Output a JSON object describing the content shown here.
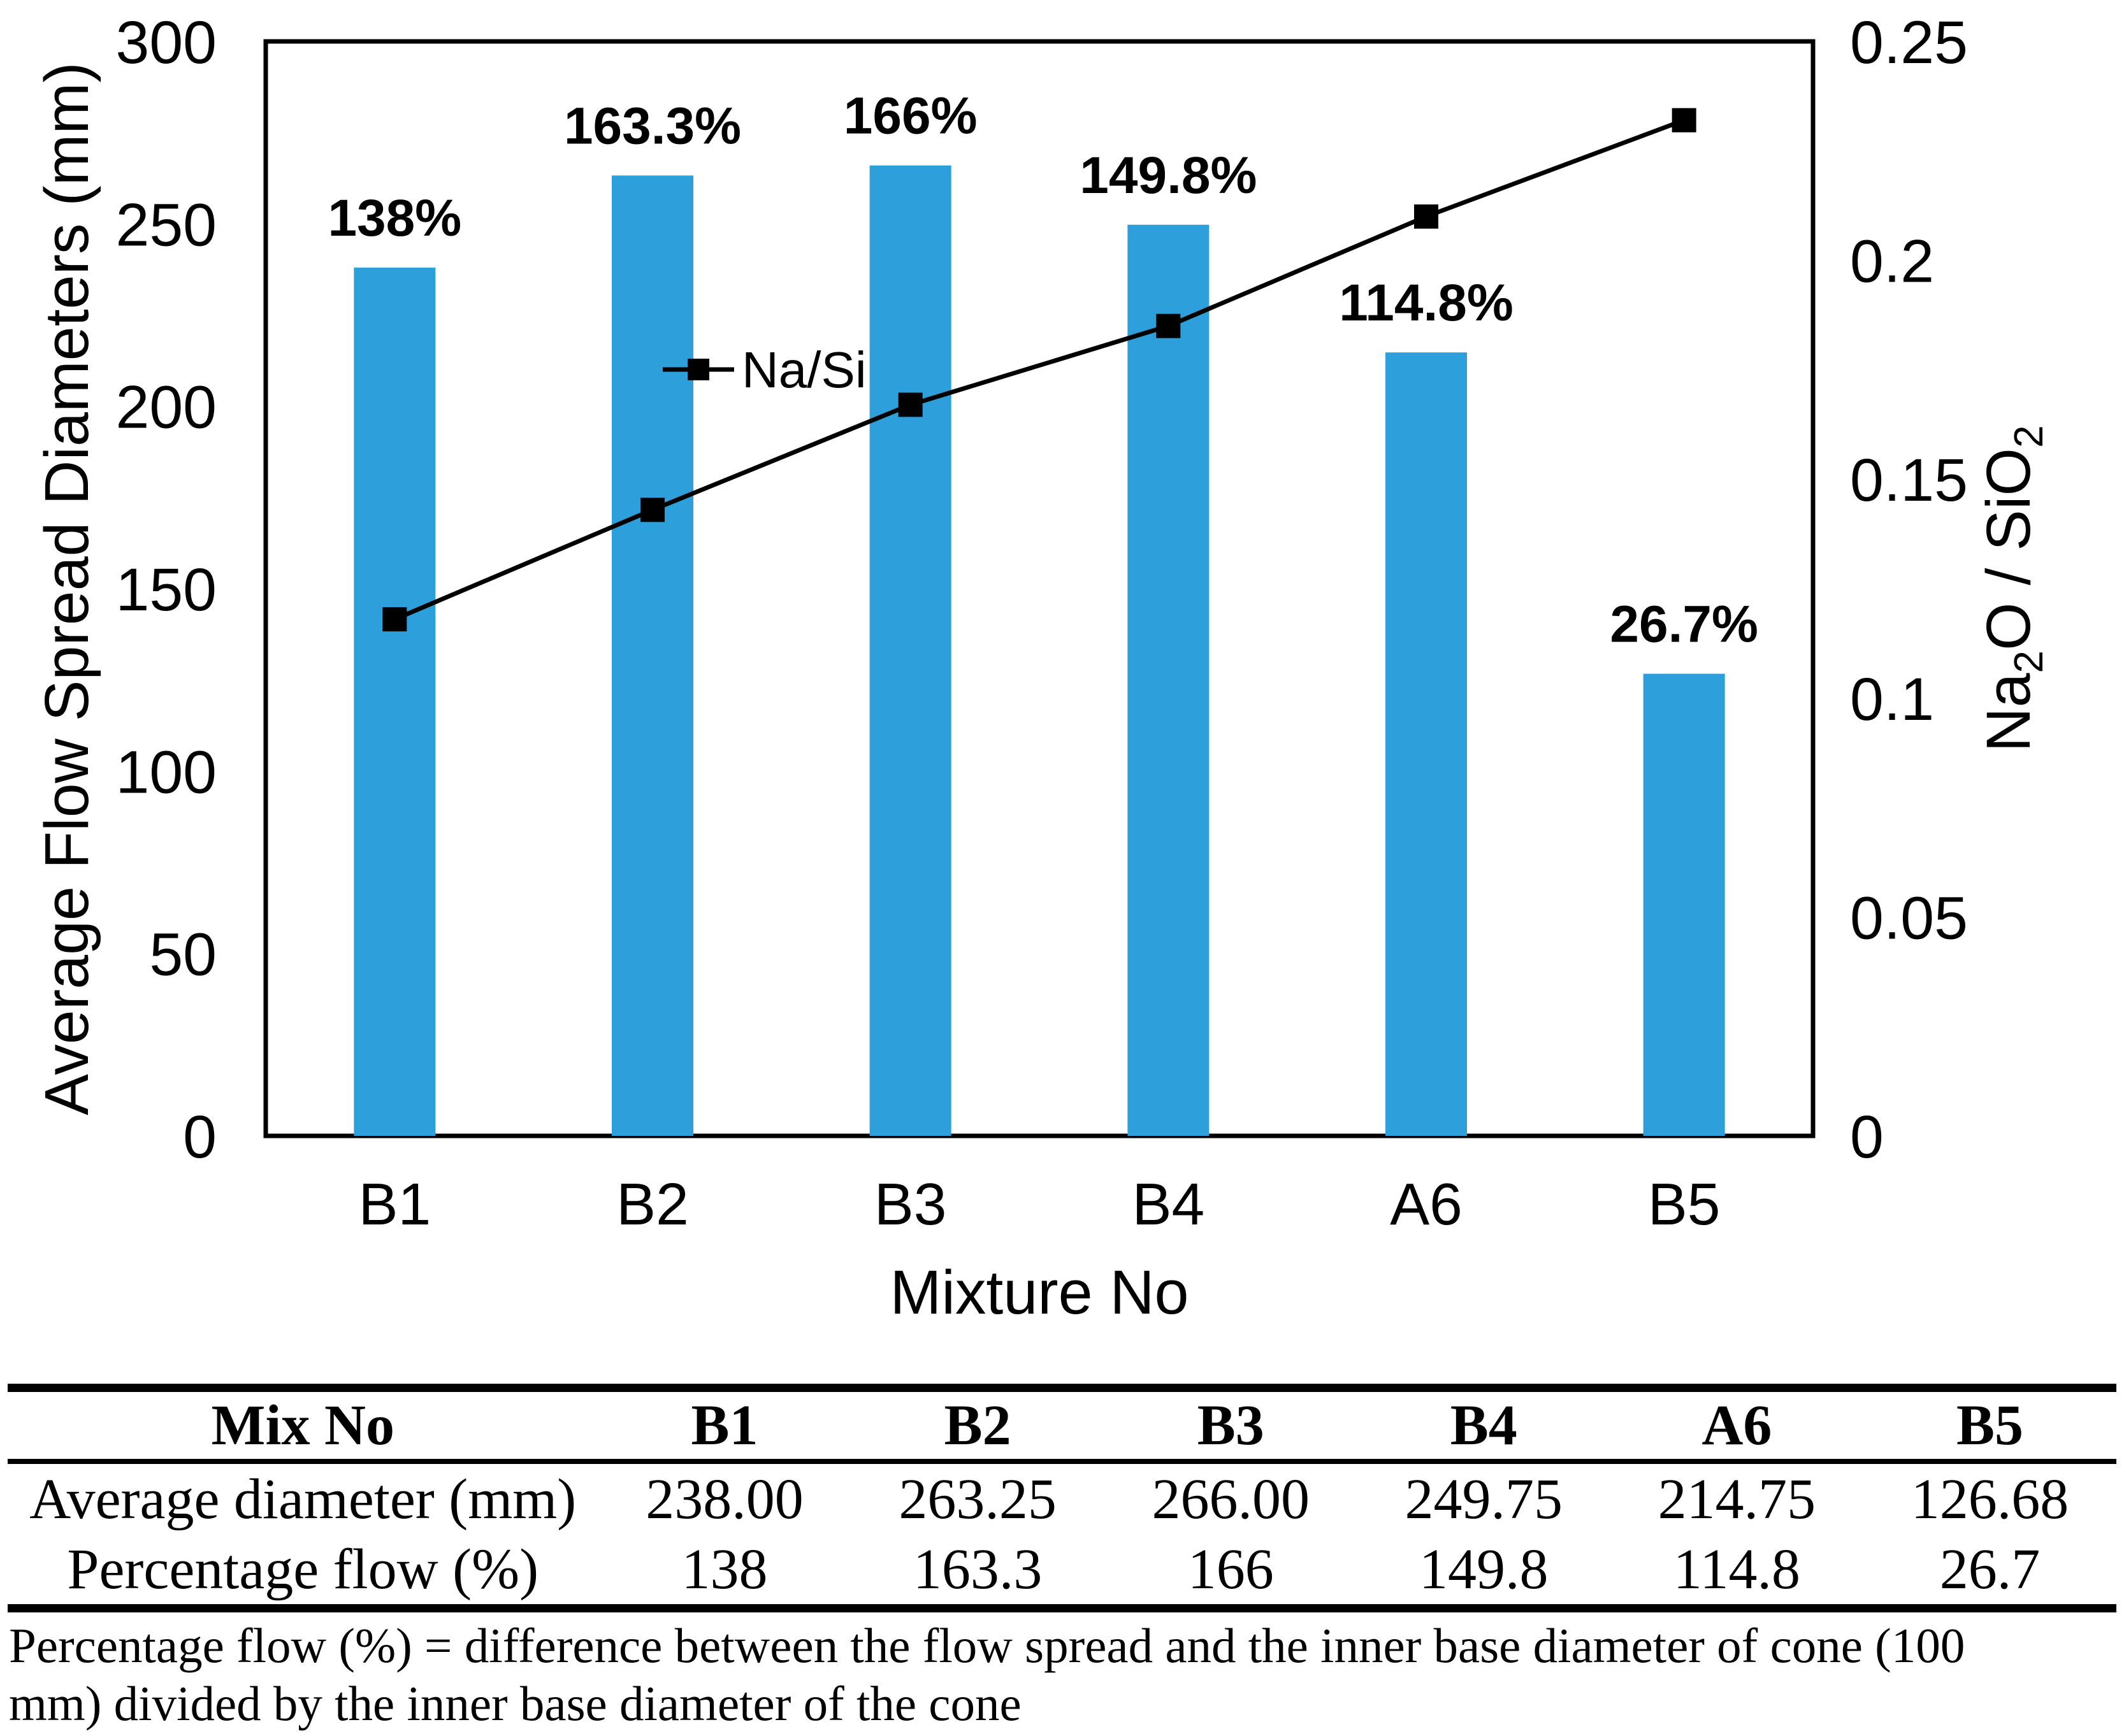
{
  "chart": {
    "left_axis_title": "Average Flow Spread Diameters (mm)",
    "x_axis_title": "Mixture No",
    "legend_label": "Na/Si",
    "right_axis_title_parts": [
      {
        "t": "Na"
      },
      {
        "t": "2",
        "sub": true
      },
      {
        "t": "O / SiO"
      },
      {
        "t": "2",
        "sub": true
      }
    ],
    "bar_color": "#2D9FDA",
    "line_color": "#000000"
  },
  "chart_data": {
    "type": "bar",
    "categories": [
      "B1",
      "B2",
      "B3",
      "B4",
      "A6",
      "B5"
    ],
    "series": [
      {
        "name": "Average Flow Spread Diameters (mm)",
        "plot": "bar",
        "axis": "left",
        "values": [
          238.0,
          263.25,
          266.0,
          249.75,
          214.75,
          126.68
        ],
        "point_labels": [
          "138%",
          "163.3%",
          "166%",
          "149.8%",
          "114.8%",
          "26.7%"
        ],
        "color": "#2D9FDA"
      },
      {
        "name": "Na/Si",
        "plot": "line",
        "axis": "right",
        "values": [
          0.118,
          0.143,
          0.167,
          0.185,
          0.21,
          0.232
        ],
        "color": "#000000",
        "marker": "filled-square"
      }
    ],
    "title": "",
    "xlabel": "Mixture No",
    "ylabel": "Average Flow Spread Diameters (mm)",
    "y2label": "Na2O / SiO2",
    "ylim": [
      0,
      300
    ],
    "y2lim": [
      0,
      0.25
    ],
    "yticks": {
      "values": [
        300,
        250,
        200,
        150,
        100,
        50,
        0
      ],
      "labels": [
        "300",
        "250",
        "200",
        "150",
        "100",
        "50",
        "0"
      ]
    },
    "y2ticks": {
      "values": [
        0.25,
        0.2,
        0.15,
        0.1,
        0.05,
        0
      ],
      "labels": [
        "0.25",
        "0.2",
        "0.15",
        "0.1",
        "0.05",
        "0"
      ]
    },
    "grid": false,
    "legend_position": "inside-upper-middle"
  },
  "table": {
    "header": [
      "Mix No",
      "B1",
      "B2",
      "B3",
      "B4",
      "A6",
      "B5"
    ],
    "rows": [
      {
        "label": "Average diameter (mm)",
        "values": [
          "238.00",
          "263.25",
          "266.00",
          "249.75",
          "214.75",
          "126.68"
        ]
      },
      {
        "label": "Percentage flow (%)",
        "values": [
          "138",
          "163.3",
          "166",
          "149.8",
          "114.8",
          "26.7"
        ]
      }
    ]
  },
  "footnote": {
    "lines": [
      "Percentage flow (%) = difference between the flow spread and the inner base diameter of cone (100",
      "mm) divided by the inner base diameter of the cone"
    ]
  }
}
